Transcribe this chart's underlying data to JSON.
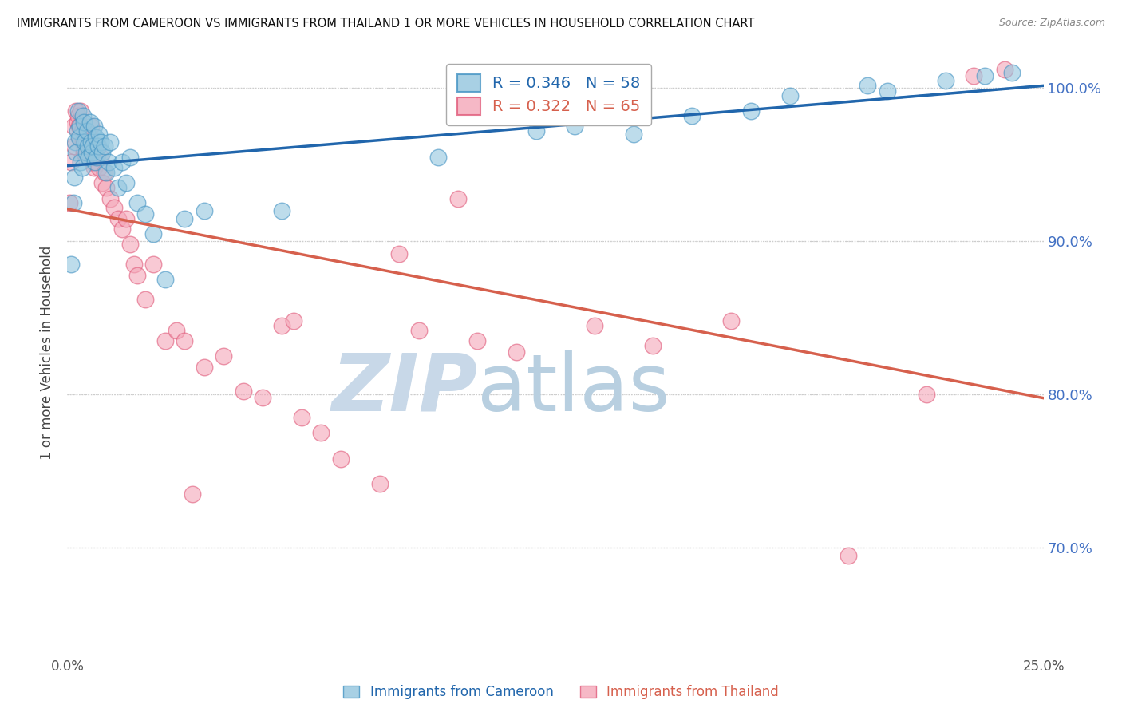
{
  "title": "IMMIGRANTS FROM CAMEROON VS IMMIGRANTS FROM THAILAND 1 OR MORE VEHICLES IN HOUSEHOLD CORRELATION CHART",
  "source": "Source: ZipAtlas.com",
  "ylabel": "1 or more Vehicles in Household",
  "xlim": [
    0.0,
    25.0
  ],
  "ylim": [
    63.0,
    102.5
  ],
  "xtick_positions": [
    0.0,
    5.0,
    10.0,
    15.0,
    20.0,
    25.0
  ],
  "xtick_labels": [
    "0.0%",
    "",
    "",
    "",
    "",
    "25.0%"
  ],
  "ytick_positions": [
    70.0,
    80.0,
    90.0,
    100.0
  ],
  "ytick_labels": [
    "70.0%",
    "80.0%",
    "90.0%",
    "100.0%"
  ],
  "legend_cameroon": "R = 0.346   N = 58",
  "legend_thailand": "R = 0.322   N = 65",
  "cameroon_color": "#92c5de",
  "thailand_color": "#f4a6b8",
  "cameroon_edge_color": "#4393c3",
  "thailand_edge_color": "#e05a7a",
  "cameroon_line_color": "#2166ac",
  "thailand_line_color": "#d6604d",
  "watermark_zip": "ZIP",
  "watermark_atlas": "atlas",
  "watermark_color_zip": "#c8d8e8",
  "watermark_color_atlas": "#b8cfe0",
  "legend_box_color": "#4393c3",
  "legend_text_blue": "#2166ac",
  "legend_text_pink": "#d6604d",
  "right_axis_color": "#4472c4",
  "cameroon_x": [
    0.1,
    0.15,
    0.18,
    0.2,
    0.22,
    0.25,
    0.28,
    0.3,
    0.32,
    0.35,
    0.38,
    0.4,
    0.42,
    0.45,
    0.48,
    0.5,
    0.52,
    0.55,
    0.58,
    0.6,
    0.62,
    0.65,
    0.68,
    0.7,
    0.72,
    0.75,
    0.78,
    0.8,
    0.85,
    0.9,
    0.95,
    1.0,
    1.05,
    1.1,
    1.2,
    1.3,
    1.4,
    1.5,
    1.6,
    1.8,
    2.0,
    2.2,
    2.5,
    3.0,
    3.5,
    5.5,
    9.5,
    12.0,
    13.0,
    14.5,
    16.0,
    17.5,
    18.5,
    20.5,
    21.0,
    22.5,
    23.5,
    24.2
  ],
  "cameroon_y": [
    88.5,
    92.5,
    94.2,
    96.5,
    95.8,
    97.2,
    98.5,
    96.8,
    97.5,
    95.2,
    94.8,
    98.2,
    97.8,
    96.5,
    95.8,
    97.2,
    96.2,
    95.5,
    97.8,
    96.5,
    95.8,
    96.2,
    97.5,
    95.2,
    96.8,
    95.5,
    96.2,
    97.0,
    96.5,
    95.8,
    96.2,
    94.5,
    95.2,
    96.5,
    94.8,
    93.5,
    95.2,
    93.8,
    95.5,
    92.5,
    91.8,
    90.5,
    87.5,
    91.5,
    92.0,
    92.0,
    95.5,
    97.2,
    97.5,
    97.0,
    98.2,
    98.5,
    99.5,
    100.2,
    99.8,
    100.5,
    100.8,
    101.0
  ],
  "thailand_x": [
    0.05,
    0.1,
    0.15,
    0.18,
    0.22,
    0.25,
    0.28,
    0.3,
    0.32,
    0.35,
    0.38,
    0.4,
    0.42,
    0.45,
    0.48,
    0.5,
    0.52,
    0.55,
    0.58,
    0.6,
    0.65,
    0.68,
    0.7,
    0.75,
    0.8,
    0.85,
    0.9,
    0.95,
    1.0,
    1.1,
    1.2,
    1.3,
    1.4,
    1.5,
    1.6,
    1.7,
    1.8,
    2.0,
    2.2,
    2.5,
    2.8,
    3.0,
    3.5,
    4.0,
    4.5,
    5.0,
    5.5,
    6.0,
    6.5,
    7.0,
    8.0,
    9.0,
    10.5,
    11.5,
    13.5,
    15.0,
    17.0,
    20.0,
    22.0,
    23.2,
    24.0,
    10.0,
    8.5,
    5.8,
    3.2
  ],
  "thailand_y": [
    92.5,
    95.2,
    97.5,
    96.2,
    98.5,
    97.8,
    98.2,
    97.5,
    96.8,
    98.5,
    97.2,
    96.5,
    95.8,
    97.2,
    96.5,
    95.8,
    97.0,
    95.5,
    96.2,
    97.5,
    95.2,
    94.8,
    95.5,
    96.2,
    94.8,
    95.5,
    93.8,
    94.5,
    93.5,
    92.8,
    92.2,
    91.5,
    90.8,
    91.5,
    89.8,
    88.5,
    87.8,
    86.2,
    88.5,
    83.5,
    84.2,
    83.5,
    81.8,
    82.5,
    80.2,
    79.8,
    84.5,
    78.5,
    77.5,
    75.8,
    74.2,
    84.2,
    83.5,
    82.8,
    84.5,
    83.2,
    84.8,
    69.5,
    80.0,
    100.8,
    101.2,
    92.8,
    89.2,
    84.8,
    73.5
  ]
}
